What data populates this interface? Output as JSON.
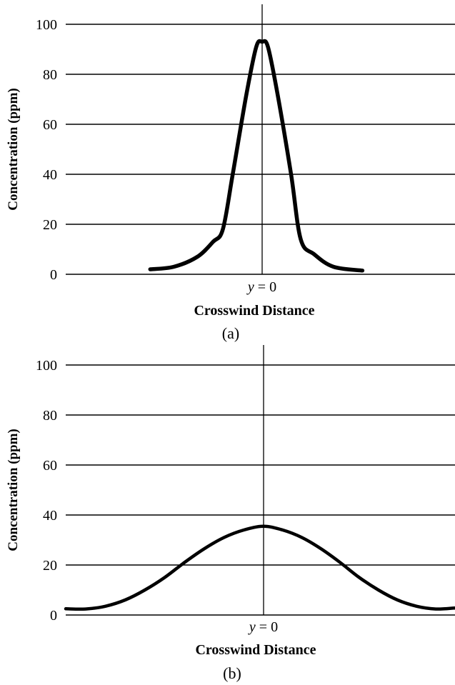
{
  "chart_data": [
    {
      "type": "line",
      "panel_label": "(a)",
      "xlabel": "Crosswind Distance",
      "ylabel": "Concentration (ppm)",
      "center_label": {
        "var": "y",
        "rest": " = 0"
      },
      "yticks": [
        "0",
        "20",
        "40",
        "60",
        "80",
        "100"
      ],
      "ylim": [
        0,
        100
      ],
      "xlim": [
        -1,
        1
      ],
      "grid": true,
      "series": [
        {
          "x": [
            -0.57,
            -0.45,
            -0.33,
            -0.25,
            -0.2,
            -0.15,
            -0.08,
            -0.03,
            0,
            0.03,
            0.08,
            0.15,
            0.2,
            0.27,
            0.37,
            0.52
          ],
          "values": [
            2,
            3,
            7,
            13,
            18,
            40,
            72,
            91,
            93,
            91,
            72,
            40,
            14,
            8,
            3,
            1.5
          ]
        }
      ]
    },
    {
      "type": "line",
      "panel_label": "(b)",
      "xlabel": "Crosswind Distance",
      "ylabel": "Concentration (ppm)",
      "center_label": {
        "var": "y",
        "rest": " = 0"
      },
      "yticks": [
        "0",
        "20",
        "40",
        "60",
        "80",
        "100"
      ],
      "ylim": [
        0,
        100
      ],
      "xlim": [
        -1,
        1
      ],
      "grid": true,
      "series": [
        {
          "x": [
            -1,
            -0.9,
            -0.8,
            -0.7,
            -0.6,
            -0.5,
            -0.4,
            -0.3,
            -0.2,
            -0.1,
            0,
            0.1,
            0.2,
            0.3,
            0.4,
            0.5,
            0.6,
            0.7,
            0.8,
            0.9,
            1
          ],
          "values": [
            2.5,
            2.4,
            3.5,
            6,
            10,
            15,
            21,
            26.5,
            31,
            34,
            35.5,
            34,
            31,
            26.5,
            21,
            15,
            10,
            6,
            3.5,
            2.4,
            2.8
          ]
        }
      ]
    }
  ]
}
